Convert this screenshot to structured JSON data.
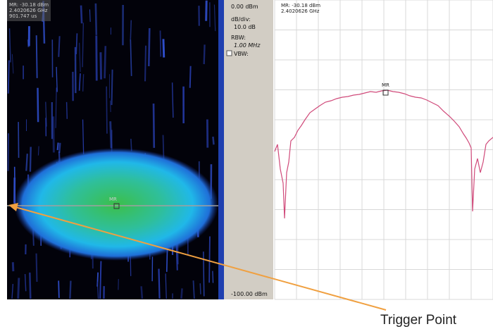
{
  "spectrogram": {
    "marker_readout": [
      "MR: -30.18 dBm",
      "2.4020626 GHz",
      "901.747 us"
    ],
    "marker_label": "MR"
  },
  "settings": {
    "ref_level": "0.00 dBm",
    "scale_label": "dB/div:",
    "scale_value": "10.0 dB",
    "rbw_label": "RBW:",
    "rbw_value": "1.00 MHz",
    "vbw_label": "VBW:",
    "bottom_level": "-100.00 dBm"
  },
  "spectrum": {
    "marker_readout": [
      "MR: -30.18 dBm",
      "2.4020626 GHz"
    ],
    "marker_label": "MR"
  },
  "annotation": "Trigger Point"
}
